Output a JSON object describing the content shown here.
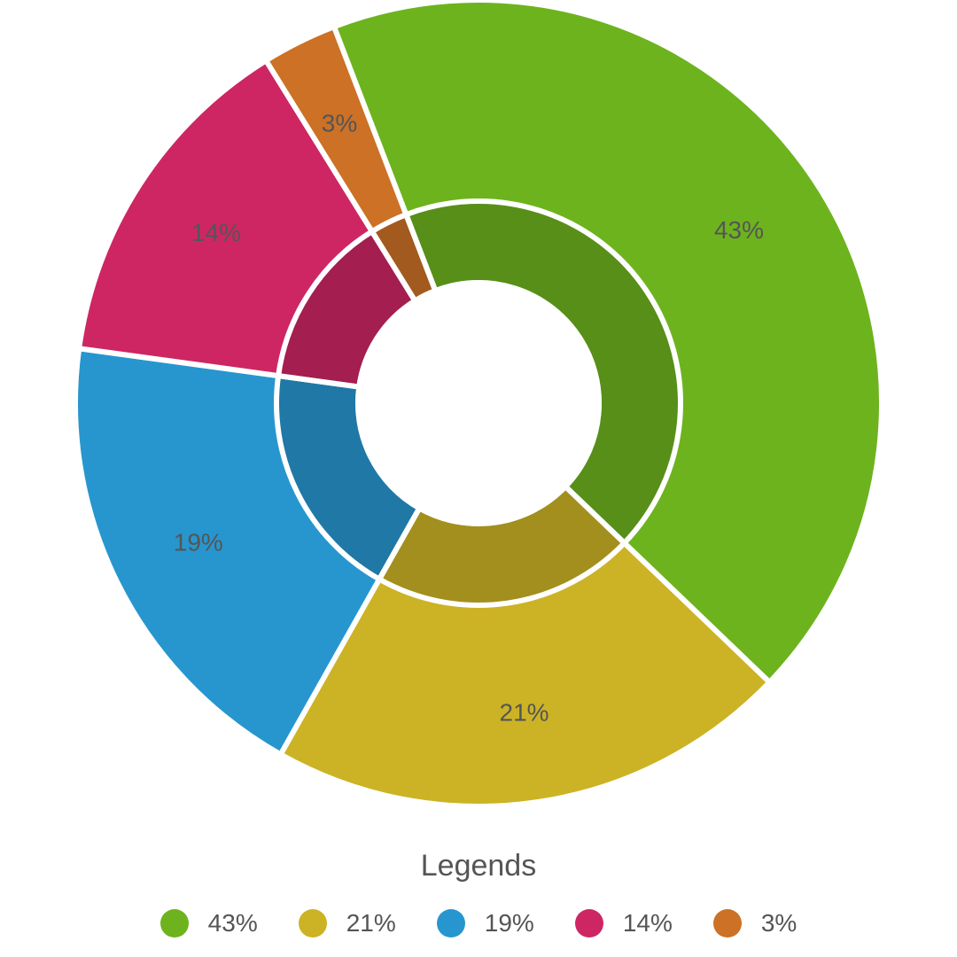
{
  "chart_data": {
    "type": "pie",
    "variant": "donut",
    "categories": [
      "43%",
      "21%",
      "19%",
      "14%",
      "3%"
    ],
    "values": [
      43,
      21,
      19,
      14,
      3
    ],
    "labels": [
      "43%",
      "21%",
      "19%",
      "14%",
      "3%"
    ],
    "colors": [
      "#6DB31E",
      "#CCB325",
      "#2796CF",
      "#CE2663",
      "#CC7126"
    ],
    "legend": {
      "title": "Legends",
      "position": "bottom",
      "entries": [
        "43%",
        "21%",
        "19%",
        "14%",
        "3%"
      ]
    }
  }
}
